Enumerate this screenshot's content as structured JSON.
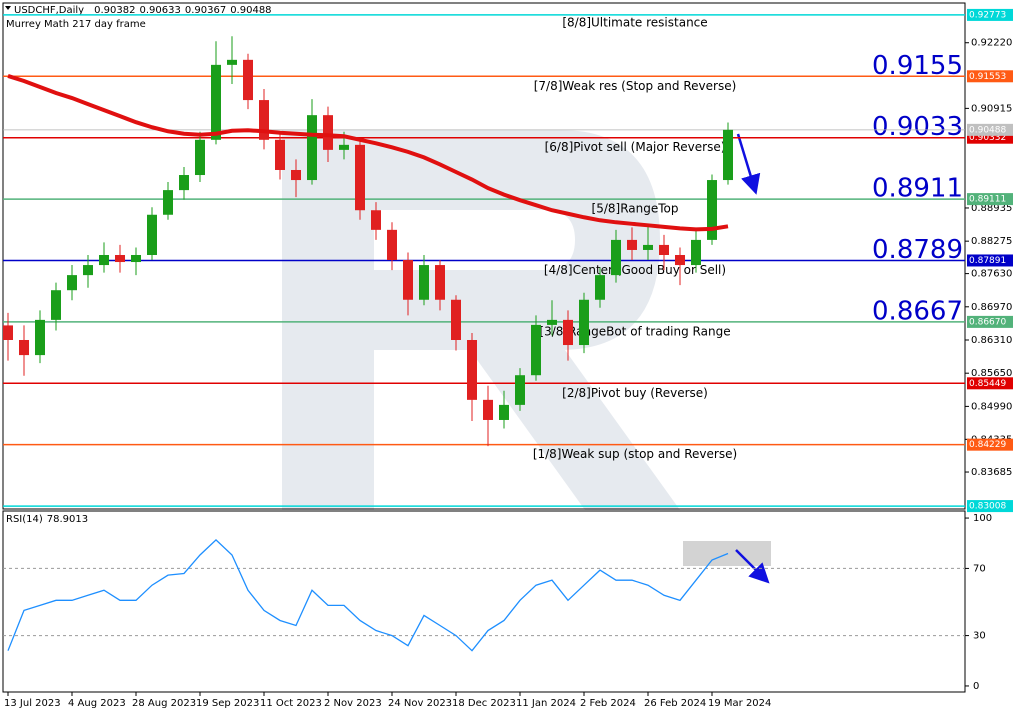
{
  "chart_data": [
    {
      "type": "candlestick",
      "title": "USDCHF,Daily",
      "header_values": [
        0.90382,
        0.90633,
        0.90367,
        0.90488
      ],
      "subtitle": "Murrey Math 217 day frame",
      "categories": [
        "13 Jul 2023",
        null,
        null,
        null,
        "4 Aug 2023",
        null,
        null,
        null,
        "28 Aug 2023",
        null,
        null,
        null,
        "19 Sep 2023",
        null,
        null,
        null,
        "11 Oct 2023",
        null,
        null,
        null,
        "2 Nov 2023",
        null,
        null,
        null,
        "24 Nov 2023",
        null,
        null,
        null,
        "18 Dec 2023",
        null,
        null,
        null,
        "11 Jan 2024",
        null,
        null,
        null,
        "2 Feb 2024",
        null,
        null,
        null,
        "26 Feb 2024",
        null,
        null,
        null,
        "19 Mar 2024",
        null
      ],
      "open": [
        0.866,
        0.8631,
        0.8601,
        0.8671,
        0.873,
        0.876,
        0.878,
        0.88,
        0.8786,
        0.88,
        0.888,
        0.8929,
        0.8959,
        0.9029,
        0.9178,
        0.9188,
        0.9108,
        0.9029,
        0.8969,
        0.8949,
        0.9078,
        0.9009,
        0.9019,
        0.8889,
        0.885,
        0.879,
        0.8711,
        0.878,
        0.8711,
        0.8631,
        0.8512,
        0.8472,
        0.8502,
        0.8561,
        0.8661,
        0.8671,
        0.8621,
        0.8711,
        0.876,
        0.883,
        0.881,
        0.882,
        0.88,
        0.878,
        0.883,
        0.8949
      ],
      "high": [
        0.8685,
        0.866,
        0.869,
        0.8745,
        0.878,
        0.88,
        0.8825,
        0.882,
        0.8815,
        0.8895,
        0.8945,
        0.8975,
        0.9045,
        0.9225,
        0.9235,
        0.92,
        0.913,
        0.9045,
        0.899,
        0.911,
        0.9095,
        0.9045,
        0.903,
        0.8905,
        0.8865,
        0.8805,
        0.88,
        0.879,
        0.872,
        0.8645,
        0.854,
        0.853,
        0.8575,
        0.868,
        0.871,
        0.869,
        0.8725,
        0.8775,
        0.885,
        0.8855,
        0.886,
        0.884,
        0.8815,
        0.885,
        0.896,
        0.90633
      ],
      "low": [
        0.859,
        0.856,
        0.8585,
        0.865,
        0.871,
        0.8735,
        0.8765,
        0.8765,
        0.876,
        0.879,
        0.887,
        0.891,
        0.8945,
        0.902,
        0.914,
        0.909,
        0.901,
        0.895,
        0.8915,
        0.894,
        0.8985,
        0.899,
        0.887,
        0.883,
        0.877,
        0.868,
        0.87,
        0.869,
        0.861,
        0.847,
        0.842,
        0.8455,
        0.849,
        0.855,
        0.864,
        0.859,
        0.8605,
        0.8695,
        0.8745,
        0.879,
        0.879,
        0.877,
        0.874,
        0.8765,
        0.882,
        0.894
      ],
      "close": [
        0.8631,
        0.8601,
        0.8671,
        0.873,
        0.876,
        0.878,
        0.88,
        0.8786,
        0.88,
        0.888,
        0.8929,
        0.8959,
        0.9029,
        0.9178,
        0.9188,
        0.9108,
        0.9029,
        0.8969,
        0.8949,
        0.9078,
        0.9009,
        0.9019,
        0.8889,
        0.885,
        0.879,
        0.8711,
        0.878,
        0.8711,
        0.8631,
        0.8512,
        0.8472,
        0.8502,
        0.8561,
        0.8661,
        0.8671,
        0.8621,
        0.8711,
        0.876,
        0.883,
        0.881,
        0.882,
        0.88,
        0.878,
        0.883,
        0.8949,
        0.90488
      ],
      "up_color": "#1a9e1a",
      "down_color": "#e02020",
      "ma": {
        "color": "#e01010",
        "values": [
          0.9156,
          0.9146,
          0.9134,
          0.9122,
          0.9112,
          0.91,
          0.9088,
          0.9076,
          0.9064,
          0.9054,
          0.9046,
          0.9041,
          0.9039,
          0.9041,
          0.9047,
          0.9048,
          0.9046,
          0.9043,
          0.9041,
          0.9039,
          0.9038,
          0.9036,
          0.9029,
          0.9022,
          0.9014,
          0.9005,
          0.8994,
          0.898,
          0.8965,
          0.895,
          0.8933,
          0.892,
          0.8909,
          0.8899,
          0.8889,
          0.8882,
          0.8875,
          0.8869,
          0.8865,
          0.8862,
          0.8859,
          0.8856,
          0.8853,
          0.8851,
          0.8852,
          0.8857
        ]
      },
      "levels": [
        {
          "value": 0.92773,
          "tag": "0.92773",
          "text": "[8/8]Ultimate resistance",
          "color": "#00d8d8"
        },
        {
          "value": 0.91553,
          "tag": "0.91553",
          "text": "[7/8]Weak res (Stop and Reverse)",
          "big": "0.9155",
          "color": "#ff5a14"
        },
        {
          "value": 0.90332,
          "tag": "0.90332",
          "text": "[6/8]Pivot sell (Major Reverse)",
          "big": "0.9033",
          "color": "#e00000"
        },
        {
          "value": 0.89111,
          "tag": "0.89111",
          "text": "[5/8]RangeTop",
          "big": "0.8911",
          "color": "#52b27a"
        },
        {
          "value": 0.87891,
          "tag": "0.87891",
          "text": "[4/8]Center (Good Buy or Sell)",
          "big": "0.8789",
          "color": "#0000c8"
        },
        {
          "value": 0.8667,
          "tag": "0.86670",
          "text": "[3/8]RangeBot of trading Range",
          "big": "0.8667",
          "color": "#52b27a"
        },
        {
          "value": 0.85449,
          "tag": "0.85449",
          "text": "[2/8]Pivot buy (Reverse)",
          "color": "#e00000"
        },
        {
          "value": 0.84229,
          "tag": "0.84229",
          "text": "[1/8]Weak sup (stop and Reverse)",
          "color": "#ff5a14"
        },
        {
          "value": 0.83008,
          "tag": "0.83008",
          "color": "#00d8d8"
        }
      ],
      "last_price": 0.90488,
      "ylim": [
        0.8295,
        0.9301
      ],
      "yticks": [
        {
          "value": 0.9222,
          "label": "0.92220"
        },
        0.90915,
        0.88935,
        0.88275,
        {
          "value": 0.8763,
          "label": "0.87630"
        },
        {
          "value": 0.8697,
          "label": "0.86970"
        },
        {
          "value": 0.8631,
          "label": "0.86310"
        },
        {
          "value": 0.8565,
          "label": "0.85650"
        },
        {
          "value": 0.8499,
          "label": "0.84990"
        },
        0.84335,
        0.83685
      ]
    },
    {
      "type": "line",
      "title": "RSI(14)",
      "last_value": 78.9013,
      "color": "#1e8fff",
      "values": [
        21,
        45,
        48,
        51,
        51,
        54,
        57,
        51,
        51,
        60,
        66,
        67,
        78,
        87,
        78,
        57,
        45,
        39,
        36,
        57,
        48,
        48,
        39,
        33,
        30,
        24,
        42,
        36,
        30,
        21,
        33,
        39,
        51,
        60,
        63,
        51,
        60,
        69,
        63,
        63,
        60,
        54,
        51,
        63,
        75,
        78.9013
      ],
      "ylim": [
        -3.6,
        104.2
      ],
      "yticks": [
        0,
        30,
        70,
        100
      ],
      "levels": [
        30,
        70
      ]
    }
  ]
}
